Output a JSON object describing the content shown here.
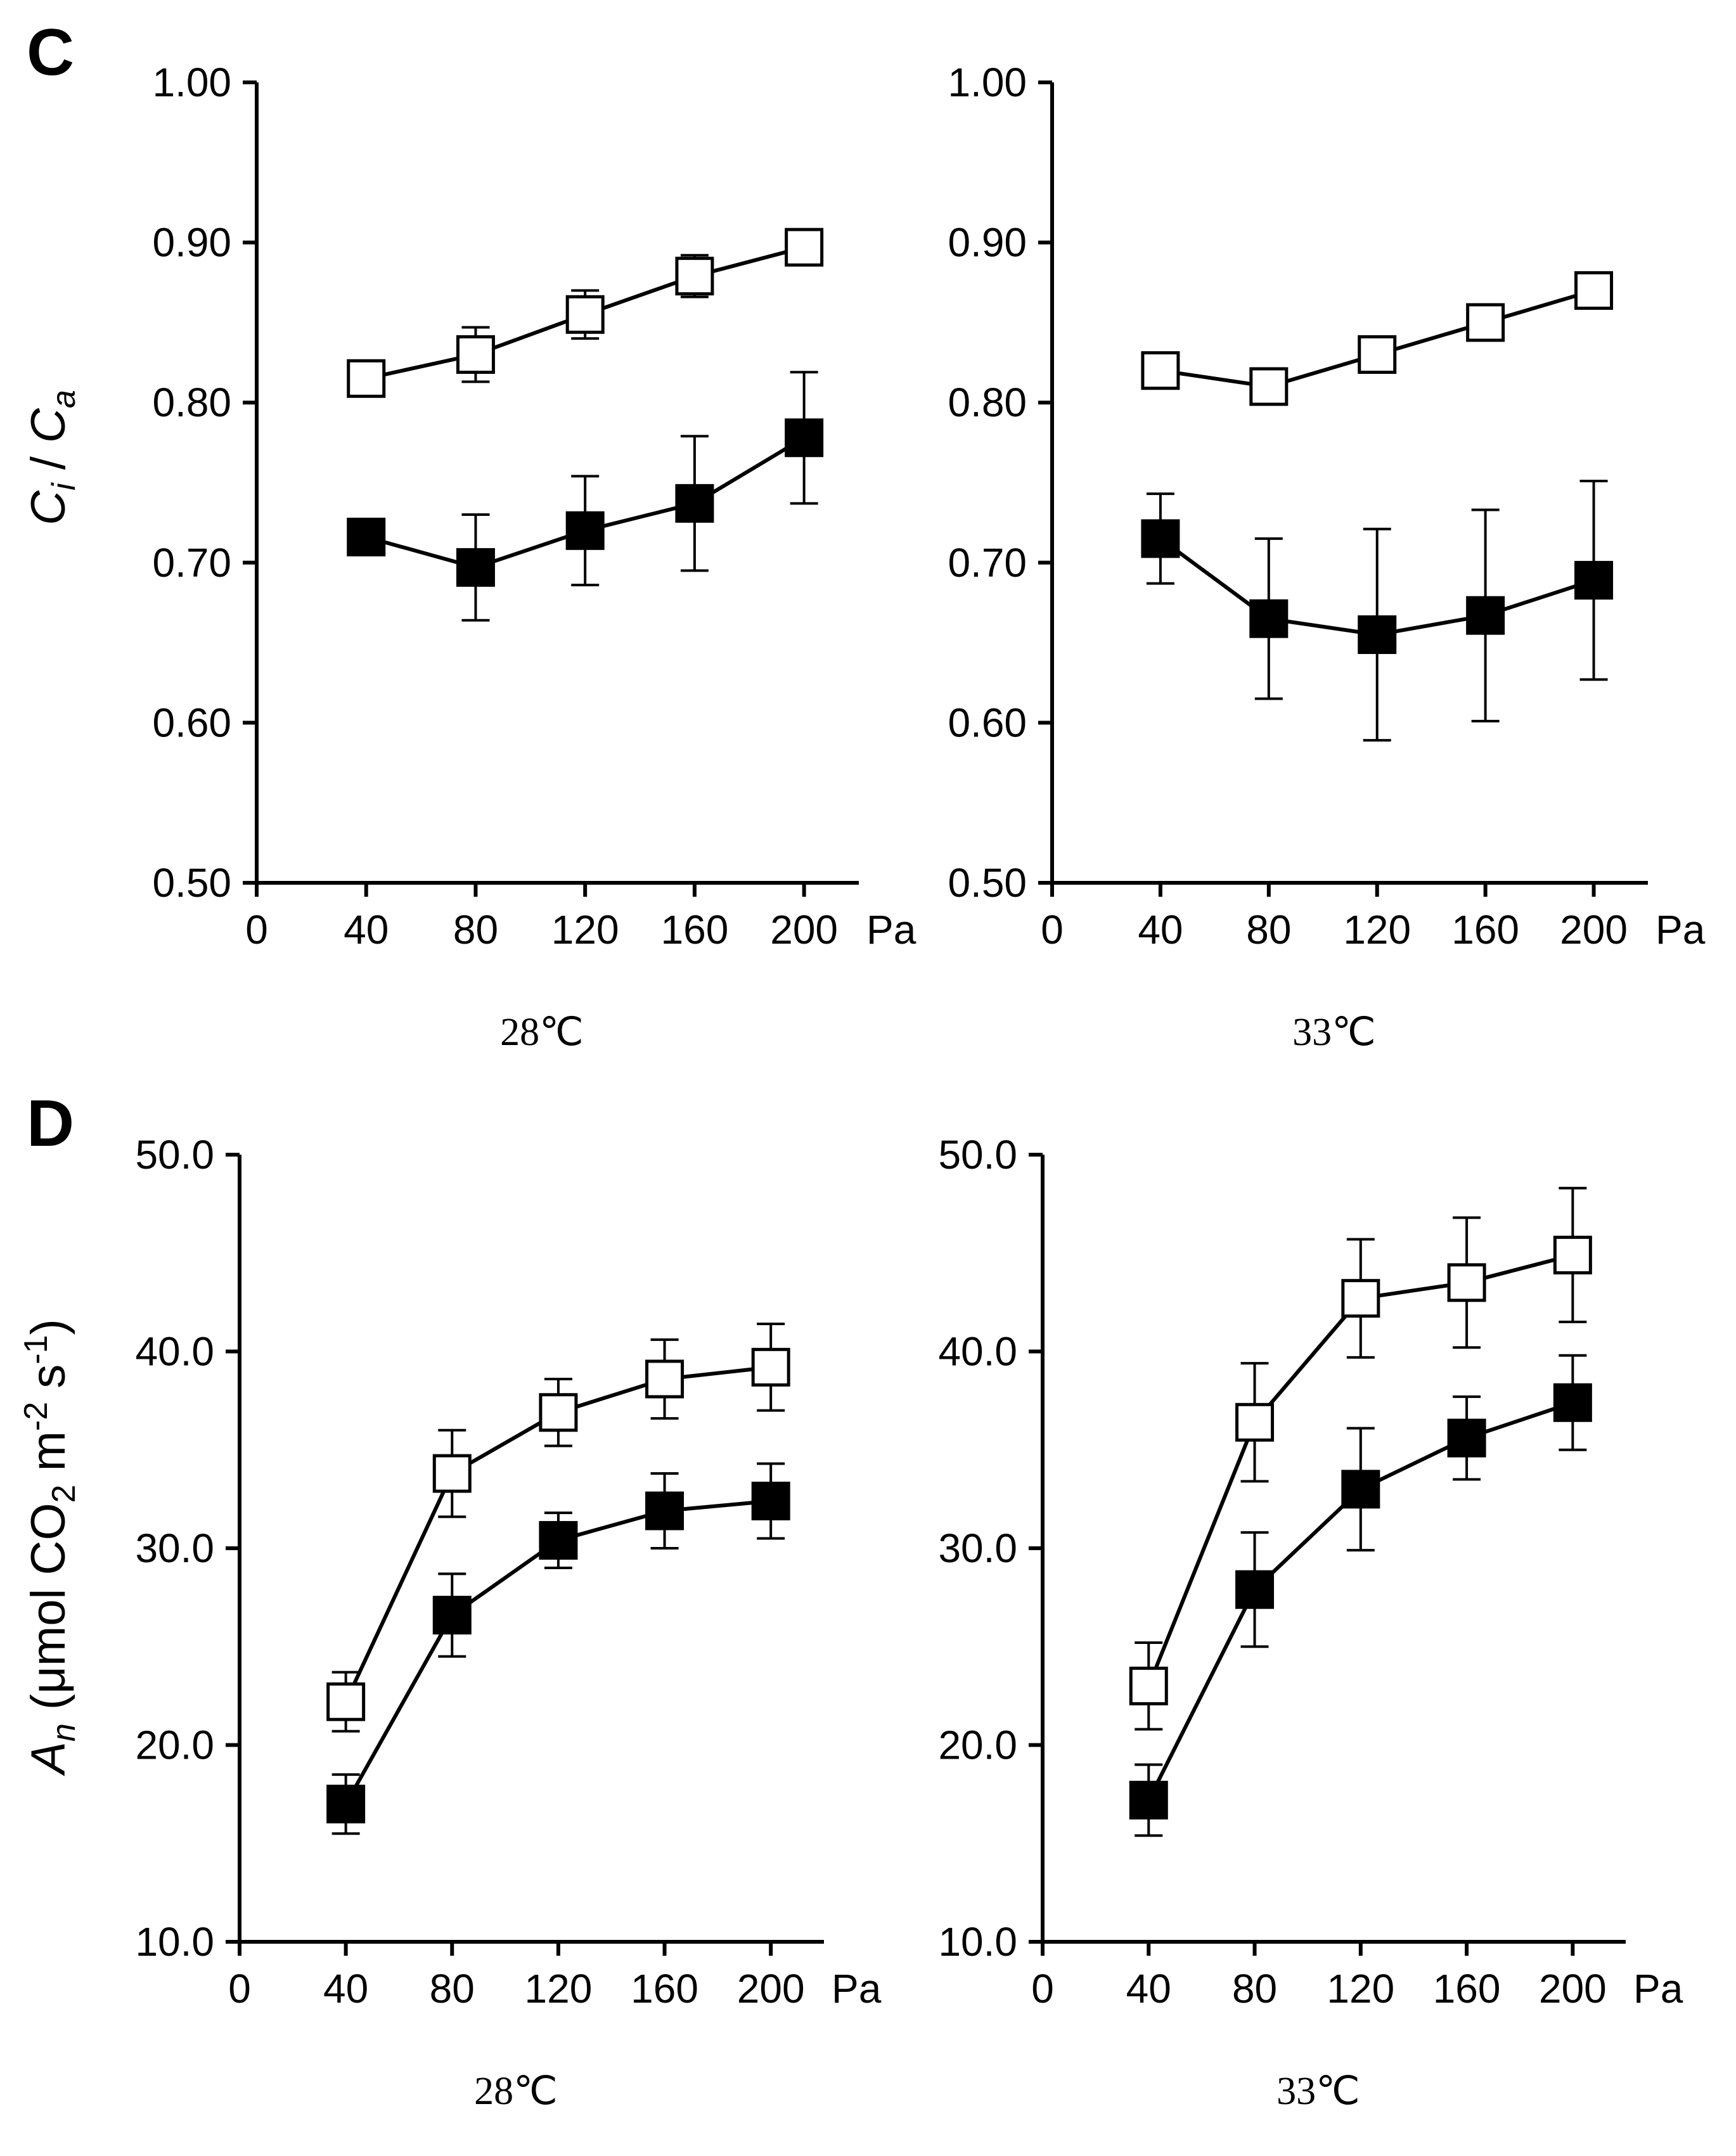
{
  "panels": [
    {
      "letter": "C",
      "ylabel_main": "C",
      "ylabel_sub_i": "i",
      "ylabel_sep": " / ",
      "ylabel_main2": "C",
      "ylabel_sub_a": "a"
    },
    {
      "letter": "D",
      "ylabel_A": "A",
      "ylabel_n": "n",
      "ylabel_mid": " (μmol CO",
      "ylabel_2": "2",
      "ylabel_m": " m",
      "ylabel_minus2": "-2",
      "ylabel_s": " s",
      "ylabel_minus1": "-1",
      "ylabel_close": ")"
    }
  ],
  "chart_data": [
    {
      "panel": "C",
      "type": "line",
      "temperature": "28℃",
      "x_unit": "Pa",
      "xlim": [
        0,
        220
      ],
      "ylim": [
        0.5,
        1.0
      ],
      "xticks": [
        "0",
        "40",
        "80",
        "120",
        "160",
        "200"
      ],
      "yticks": [
        "0.50",
        "0.60",
        "0.70",
        "0.80",
        "0.90",
        "1.00"
      ],
      "x": [
        40,
        80,
        120,
        160,
        200
      ],
      "series": [
        {
          "marker": "open-square",
          "values": [
            0.815,
            0.83,
            0.855,
            0.879,
            0.897
          ],
          "errors": [
            0.0,
            0.017,
            0.015,
            0.013,
            0.0
          ]
        },
        {
          "marker": "filled-square",
          "values": [
            0.716,
            0.697,
            0.72,
            0.737,
            0.778
          ],
          "errors": [
            0.0,
            0.033,
            0.034,
            0.042,
            0.041
          ]
        }
      ]
    },
    {
      "panel": "C",
      "type": "line",
      "temperature": "33℃",
      "x_unit": "Pa",
      "xlim": [
        0,
        220
      ],
      "ylim": [
        0.5,
        1.0
      ],
      "xticks": [
        "0",
        "40",
        "80",
        "120",
        "160",
        "200"
      ],
      "yticks": [
        "0.50",
        "0.60",
        "0.70",
        "0.80",
        "0.90",
        "1.00"
      ],
      "x": [
        40,
        80,
        120,
        160,
        200
      ],
      "series": [
        {
          "marker": "open-square",
          "values": [
            0.82,
            0.81,
            0.83,
            0.85,
            0.87
          ],
          "errors": [
            0.0,
            0.0,
            0.0,
            0.0,
            0.0
          ]
        },
        {
          "marker": "filled-square",
          "values": [
            0.715,
            0.665,
            0.655,
            0.667,
            0.689
          ],
          "errors": [
            0.028,
            0.05,
            0.066,
            0.066,
            0.062
          ]
        }
      ]
    },
    {
      "panel": "D",
      "type": "line",
      "temperature": "28℃",
      "x_unit": "Pa",
      "xlim": [
        0,
        220
      ],
      "ylim": [
        10,
        50
      ],
      "xticks": [
        "0",
        "40",
        "80",
        "120",
        "160",
        "200"
      ],
      "yticks": [
        "10.0",
        "20.0",
        "30.0",
        "40.0",
        "50.0"
      ],
      "x": [
        40,
        80,
        120,
        160,
        200
      ],
      "series": [
        {
          "marker": "open-square",
          "values": [
            22.2,
            33.8,
            36.9,
            38.6,
            39.2
          ],
          "errors": [
            1.5,
            2.2,
            1.7,
            2.0,
            2.2
          ]
        },
        {
          "marker": "filled-square",
          "values": [
            17.0,
            26.6,
            30.4,
            31.9,
            32.4
          ],
          "errors": [
            1.5,
            2.1,
            1.4,
            1.9,
            1.9
          ]
        }
      ]
    },
    {
      "panel": "D",
      "type": "line",
      "temperature": "33℃",
      "x_unit": "Pa",
      "xlim": [
        0,
        220
      ],
      "ylim": [
        10,
        50
      ],
      "xticks": [
        "0",
        "40",
        "80",
        "120",
        "160",
        "200"
      ],
      "yticks": [
        "10.0",
        "20.0",
        "30.0",
        "40.0",
        "50.0"
      ],
      "x": [
        40,
        80,
        120,
        160,
        200
      ],
      "series": [
        {
          "marker": "open-square",
          "values": [
            23.0,
            36.4,
            42.7,
            43.5,
            44.9
          ],
          "errors": [
            2.2,
            3.0,
            3.0,
            3.3,
            3.4
          ]
        },
        {
          "marker": "filled-square",
          "values": [
            17.2,
            27.9,
            33.0,
            35.6,
            37.4
          ],
          "errors": [
            1.8,
            2.9,
            3.1,
            2.1,
            2.4
          ]
        }
      ]
    }
  ]
}
